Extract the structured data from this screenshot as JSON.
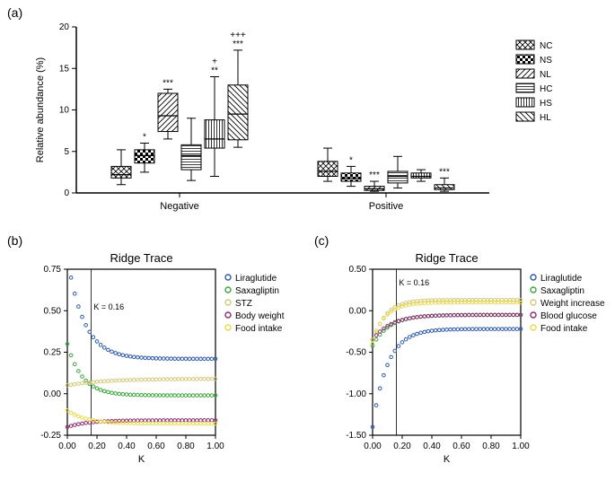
{
  "panel_a": {
    "label": "(a)",
    "y_label": "Relative abundance (%)",
    "y_ticks": [
      0,
      5,
      10,
      15,
      20
    ],
    "x_groups": [
      "Negative",
      "Positive"
    ],
    "legend": [
      "NC",
      "NS",
      "NL",
      "HC",
      "HS",
      "HL"
    ],
    "patterns": [
      "crosshatch",
      "checker",
      "diag-right",
      "horiz",
      "vert",
      "diag-left"
    ],
    "boxes_negative": [
      {
        "group": "NC",
        "min": 1.0,
        "q1": 1.8,
        "median": 2.2,
        "q3": 3.2,
        "max": 5.2,
        "sig": ""
      },
      {
        "group": "NS",
        "min": 2.5,
        "q1": 3.6,
        "median": 4.5,
        "q3": 5.2,
        "max": 6.0,
        "sig": "*"
      },
      {
        "group": "NL",
        "min": 6.5,
        "q1": 7.4,
        "median": 9.3,
        "q3": 12.0,
        "max": 12.5,
        "sig": "***"
      },
      {
        "group": "HC",
        "min": 1.5,
        "q1": 2.8,
        "median": 4.5,
        "q3": 5.8,
        "max": 9.0,
        "sig": ""
      },
      {
        "group": "HS",
        "min": 2.0,
        "q1": 5.4,
        "median": 6.5,
        "q3": 8.8,
        "max": 14.0,
        "sig": "+\n**"
      },
      {
        "group": "HL",
        "min": 5.5,
        "q1": 6.4,
        "median": 9.5,
        "q3": 13.0,
        "max": 17.2,
        "sig": "+++\n***"
      }
    ],
    "boxes_positive": [
      {
        "group": "NC",
        "min": 1.4,
        "q1": 2.0,
        "median": 2.6,
        "q3": 3.8,
        "max": 5.4,
        "sig": ""
      },
      {
        "group": "NS",
        "min": 0.8,
        "q1": 1.4,
        "median": 1.8,
        "q3": 2.4,
        "max": 3.2,
        "sig": "*"
      },
      {
        "group": "NL",
        "min": 0.2,
        "q1": 0.3,
        "median": 0.5,
        "q3": 0.8,
        "max": 1.4,
        "sig": "***"
      },
      {
        "group": "HC",
        "min": 0.6,
        "q1": 1.2,
        "median": 2.0,
        "q3": 2.6,
        "max": 4.4,
        "sig": ""
      },
      {
        "group": "HS",
        "min": 1.4,
        "q1": 1.8,
        "median": 2.0,
        "q3": 2.4,
        "max": 2.8,
        "sig": ""
      },
      {
        "group": "HL",
        "min": 0.2,
        "q1": 0.4,
        "median": 0.6,
        "q3": 1.0,
        "max": 1.8,
        "sig": "***"
      }
    ]
  },
  "panel_b": {
    "label": "(b)",
    "title": "Ridge Trace",
    "x_label": "K",
    "x_ticks": [
      0.0,
      0.2,
      0.4,
      0.6,
      0.8,
      1.0
    ],
    "y_ticks": [
      -0.25,
      0.0,
      0.25,
      0.5,
      0.75
    ],
    "k_line": 0.16,
    "k_label": "K = 0.16",
    "legend": [
      {
        "name": "Liraglutide",
        "color": "#2e5aa8"
      },
      {
        "name": "Saxagliptin",
        "color": "#3da63d"
      },
      {
        "name": "STZ",
        "color": "#d4c97a"
      },
      {
        "name": "Body weight",
        "color": "#8a2d6f"
      },
      {
        "name": "Food intake",
        "color": "#e8d94f"
      }
    ],
    "series": {
      "Liraglutide": {
        "start": 0.82,
        "end": 0.21,
        "decay": 2.2
      },
      "Saxagliptin": {
        "start": 0.3,
        "end": -0.01,
        "decay": 2.5
      },
      "STZ": {
        "start": 0.05,
        "end": 0.09,
        "decay": 1.0
      },
      "Body weight": {
        "start": -0.2,
        "end": -0.16,
        "decay": 1.8
      },
      "Food intake": {
        "start": -0.1,
        "end": -0.18,
        "decay": 2.0
      }
    }
  },
  "panel_c": {
    "label": "(c)",
    "title": "Ridge Trace",
    "x_label": "K",
    "x_ticks": [
      0.0,
      0.2,
      0.4,
      0.6,
      0.8,
      1.0
    ],
    "y_ticks": [
      -1.5,
      -1.0,
      -0.5,
      0.0,
      0.5
    ],
    "k_line": 0.16,
    "k_label": "K = 0.16",
    "legend": [
      {
        "name": "Liraglutide",
        "color": "#2e5aa8"
      },
      {
        "name": "Saxagliptin",
        "color": "#3da63d"
      },
      {
        "name": "Weight increase",
        "color": "#d4c97a"
      },
      {
        "name": "Blood glucose",
        "color": "#8a2d6f"
      },
      {
        "name": "Food intake",
        "color": "#e8d94f"
      }
    ],
    "series": {
      "Liraglutide": {
        "start": -1.4,
        "end": -0.22,
        "decay": 2.5
      },
      "Saxagliptin": {
        "start": -0.42,
        "end": -0.05,
        "decay": 2.2
      },
      "Weight increase": {
        "start": -0.4,
        "end": 0.13,
        "decay": 3.0
      },
      "Blood glucose": {
        "start": -0.35,
        "end": -0.05,
        "decay": 2.0
      },
      "Food intake": {
        "start": -0.35,
        "end": 0.1,
        "decay": 2.8
      }
    }
  },
  "colors": {
    "axis": "#000000",
    "box_stroke": "#000000",
    "grid": "#000000"
  }
}
